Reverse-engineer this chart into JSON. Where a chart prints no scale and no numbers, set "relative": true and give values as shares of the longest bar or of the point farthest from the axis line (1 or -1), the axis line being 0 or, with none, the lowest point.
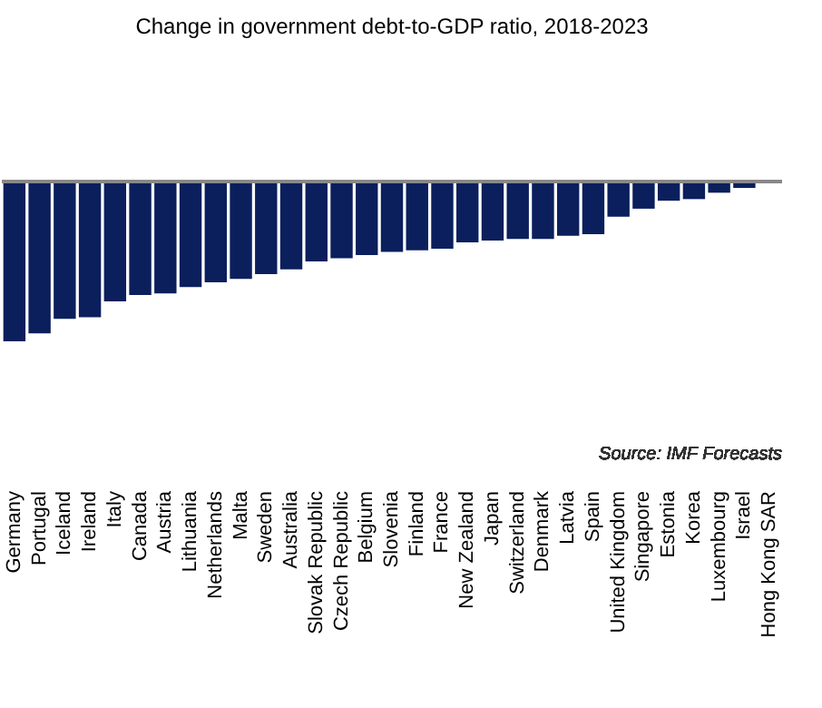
{
  "chart_data": {
    "type": "bar",
    "title": "Change in government debt-to-GDP ratio, 2018-2023",
    "categories": [
      "Germany",
      "Portugal",
      "Iceland",
      "Ireland",
      "Italy",
      "Canada",
      "Austria",
      "Lithuania",
      "Netherlands",
      "Malta",
      "Sweden",
      "Australia",
      "Slovak Republic",
      "Czech Republic",
      "Belgium",
      "Slovenia",
      "Finland",
      "France",
      "New Zealand",
      "Japan",
      "Switzerland",
      "Denmark",
      "Latvia",
      "Spain",
      "United Kingdom",
      "Singapore",
      "Estonia",
      "Korea",
      "Luxembourg",
      "Israel",
      "Hong Kong SAR"
    ],
    "values": [
      -1,
      -0.95,
      -0.86,
      -0.85,
      -0.75,
      -0.71,
      -0.7,
      -0.66,
      -0.63,
      -0.61,
      -0.58,
      -0.55,
      -0.5,
      -0.48,
      -0.46,
      -0.44,
      -0.43,
      -0.42,
      -0.38,
      -0.37,
      -0.36,
      -0.36,
      -0.34,
      -0.33,
      -0.22,
      -0.17,
      -0.12,
      -0.11,
      -0.07,
      -0.04,
      0
    ],
    "color": "#0a1f5c",
    "relative": true,
    "annotations": [
      "Source: IMF Forecasts"
    ]
  }
}
